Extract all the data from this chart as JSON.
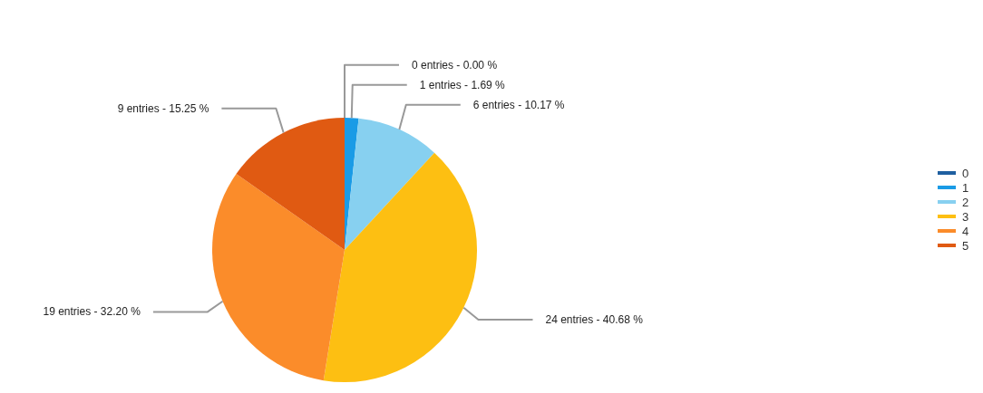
{
  "chart_data": {
    "type": "pie",
    "categories": [
      "0",
      "1",
      "2",
      "3",
      "4",
      "5"
    ],
    "values": [
      0,
      1,
      6,
      24,
      19,
      9
    ],
    "value_labels": [
      "0 entries - 0.00 %",
      "1 entries - 1.69 %",
      "6 entries - 10.17 %",
      "24 entries - 40.68 %",
      "19 entries - 32.20 %",
      "9 entries - 15.25 %"
    ],
    "colors": [
      "#1f5fa0",
      "#1a9be6",
      "#87d0f0",
      "#fdbf12",
      "#fb8c2a",
      "#e05a12"
    ],
    "legend": "right"
  }
}
